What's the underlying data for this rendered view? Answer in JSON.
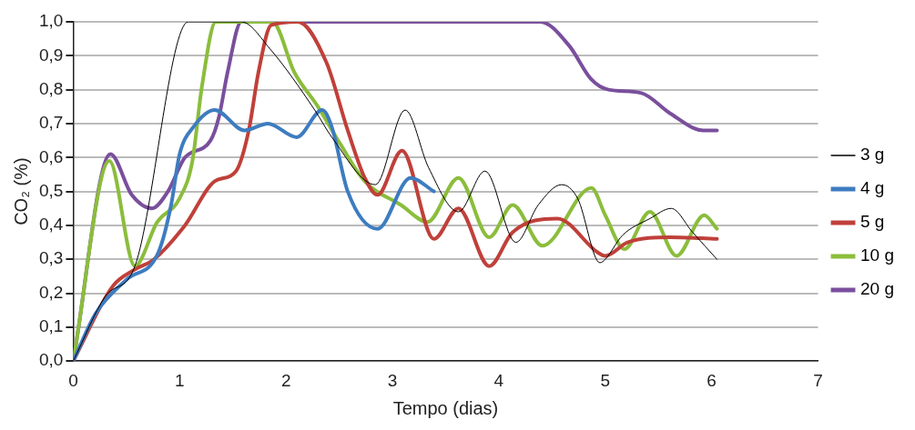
{
  "chart_data": {
    "type": "line",
    "xlabel": "Tempo (dias)",
    "ylabel": "CO₂ (%)",
    "xlim": [
      0,
      7
    ],
    "xticks": [
      0,
      1,
      2,
      3,
      4,
      5,
      6,
      7
    ],
    "ylim": [
      0,
      1
    ],
    "yticks": [
      {
        "value": 0,
        "label": "0,0"
      },
      {
        "value": 0.1,
        "label": "0,1"
      },
      {
        "value": 0.2,
        "label": "0,2"
      },
      {
        "value": 0.3,
        "label": "0,3"
      },
      {
        "value": 0.4,
        "label": "0,4"
      },
      {
        "value": 0.5,
        "label": "0,5"
      },
      {
        "value": 0.6,
        "label": "0,6"
      },
      {
        "value": 0.7,
        "label": "0,7"
      },
      {
        "value": 0.8,
        "label": "0,8"
      },
      {
        "value": 0.9,
        "label": "0,9"
      },
      {
        "value": 1,
        "label": "1,0"
      }
    ],
    "grid": "y",
    "legend": "right",
    "marker": "none",
    "line_style": "solid",
    "series": [
      {
        "name": "3 g",
        "color": "#000000",
        "x": [
          0,
          0.3,
          0.58,
          1.08,
          1.58,
          1.85,
          2.27,
          2.43,
          2.84,
          3.12,
          3.34,
          3.62,
          3.87,
          4.16,
          4.37,
          4.59,
          4.74,
          4.95,
          5.0,
          5.16,
          5.42,
          5.62,
          5.82,
          6.05
        ],
        "values": [
          0,
          0.19,
          0.28,
          1.0,
          1.0,
          0.92,
          0.74,
          0.66,
          0.52,
          0.74,
          0.57,
          0.44,
          0.56,
          0.35,
          0.46,
          0.52,
          0.48,
          0.29,
          0.3,
          0.37,
          0.42,
          0.45,
          0.38,
          0.3
        ]
      },
      {
        "name": "4 g",
        "color": "#3e7cc0",
        "x": [
          0,
          0.21,
          0.5,
          0.8,
          0.92,
          1.0,
          1.13,
          1.33,
          1.61,
          1.83,
          2.1,
          2.34,
          2.43,
          2.58,
          2.86,
          3.17,
          3.39
        ],
        "values": [
          0,
          0.14,
          0.24,
          0.32,
          0.46,
          0.61,
          0.69,
          0.74,
          0.68,
          0.7,
          0.66,
          0.74,
          0.69,
          0.5,
          0.39,
          0.54,
          0.5
        ]
      },
      {
        "name": "5 g",
        "color": "#c0403a",
        "x": [
          0,
          0.37,
          0.58,
          0.76,
          1.05,
          1.33,
          1.53,
          1.65,
          1.74,
          1.86,
          2.11,
          2.38,
          2.58,
          2.74,
          2.86,
          3.09,
          3.39,
          3.62,
          3.91,
          4.13,
          4.55,
          4.93,
          5.0,
          5.21,
          5.61,
          6.05
        ],
        "values": [
          0,
          0.22,
          0.27,
          0.3,
          0.4,
          0.53,
          0.56,
          0.68,
          0.85,
          0.99,
          1.0,
          0.88,
          0.68,
          0.54,
          0.49,
          0.62,
          0.36,
          0.45,
          0.28,
          0.38,
          0.42,
          0.32,
          0.31,
          0.35,
          0.365,
          0.36
        ]
      },
      {
        "name": "10 g",
        "color": "#8bbd3c",
        "x": [
          0,
          0.34,
          0.58,
          0.79,
          1.0,
          1.12,
          1.21,
          1.34,
          1.87,
          2.08,
          2.3,
          2.51,
          2.74,
          3.08,
          3.33,
          3.62,
          3.91,
          4.13,
          4.41,
          4.87,
          5.0,
          5.18,
          5.42,
          5.67,
          5.93,
          6.05
        ],
        "values": [
          0,
          0.59,
          0.28,
          0.41,
          0.48,
          0.59,
          0.81,
          1.0,
          1.0,
          0.85,
          0.75,
          0.64,
          0.53,
          0.46,
          0.41,
          0.54,
          0.365,
          0.46,
          0.34,
          0.51,
          0.43,
          0.33,
          0.44,
          0.31,
          0.43,
          0.39
        ]
      },
      {
        "name": "20 g",
        "color": "#7a4f9c",
        "x": [
          0,
          0.35,
          0.55,
          0.74,
          0.89,
          1.05,
          1.29,
          1.37,
          1.45,
          1.58,
          4.39,
          4.66,
          4.87,
          5.03,
          5.34,
          5.61,
          5.92,
          6.05
        ],
        "values": [
          0,
          0.61,
          0.49,
          0.45,
          0.5,
          0.6,
          0.65,
          0.72,
          0.85,
          1.0,
          1.0,
          0.93,
          0.83,
          0.8,
          0.79,
          0.73,
          0.68,
          0.68
        ]
      }
    ]
  }
}
